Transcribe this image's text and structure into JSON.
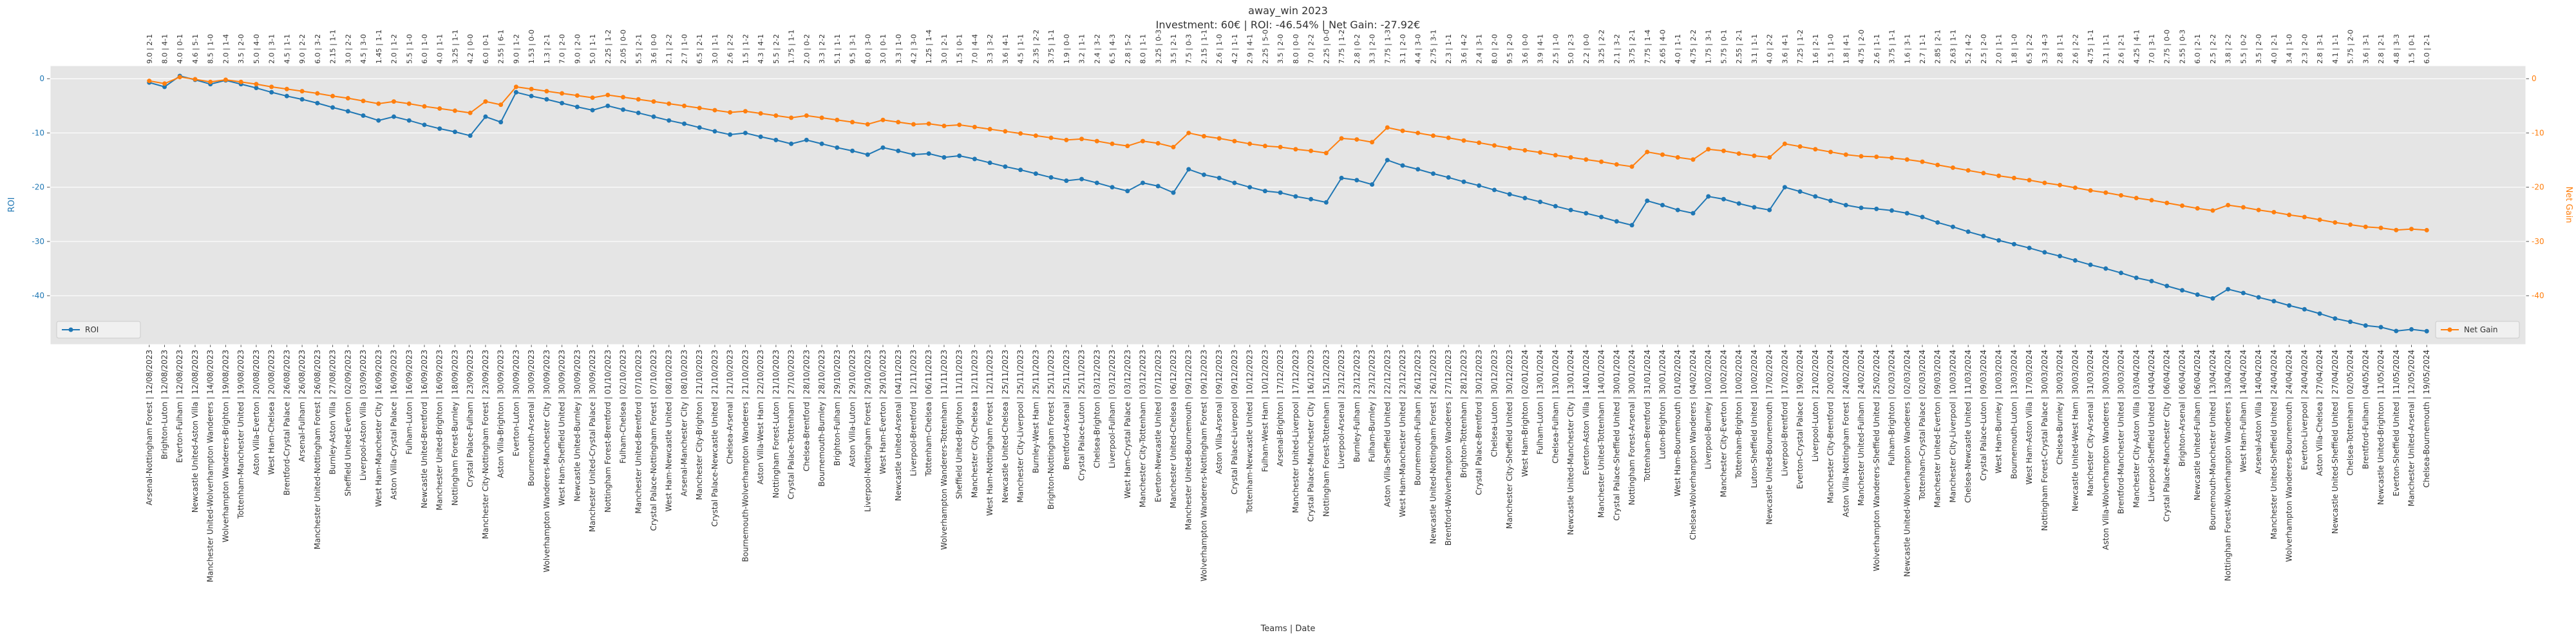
{
  "chart_data": {
    "type": "line",
    "title": "away_win 2023",
    "subtitle": "Investment: 60€ | ROI: -46.54% | Net Gain: -27.92€",
    "x_label": "Teams | Date",
    "y_label": "ROI",
    "y2_label": "Net Gain",
    "ylim": [
      -49,
      2.4
    ],
    "yticks": [
      0,
      -10,
      -20,
      -30,
      -40
    ],
    "y2lim": [
      -49,
      2.4
    ],
    "y2ticks": [
      0,
      -10,
      -20,
      -30,
      -40
    ],
    "grid": true,
    "categories": [
      "Arsenal-Nottingham Forest | 12/08/2023",
      "Brighton-Luton | 12/08/2023",
      "Everton-Fulham | 12/08/2023",
      "Newcastle United-Aston Villa | 12/08/2023",
      "Manchester United-Wolverhampton Wanderers | 14/08/2023",
      "Wolverhampton Wanderers-Brighton | 19/08/2023",
      "Tottenham-Manchester United | 19/08/2023",
      "Aston Villa-Everton | 20/08/2023",
      "West Ham-Chelsea | 20/08/2023",
      "Brentford-Crystal Palace | 26/08/2023",
      "Arsenal-Fulham | 26/08/2023",
      "Manchester United-Nottingham Forest | 26/08/2023",
      "Burnley-Aston Villa | 27/08/2023",
      "Sheffield United-Everton | 02/09/2023",
      "Liverpool-Aston Villa | 03/09/2023",
      "West Ham-Manchester City | 16/09/2023",
      "Aston Villa-Crystal Palace | 16/09/2023",
      "Fulham-Luton | 16/09/2023",
      "Newcastle United-Brentford | 16/09/2023",
      "Manchester United-Brighton | 16/09/2023",
      "Nottingham Forest-Burnley | 18/09/2023",
      "Crystal Palace-Fulham | 23/09/2023",
      "Manchester City-Nottingham Forest | 23/09/2023",
      "Aston Villa-Brighton | 30/09/2023",
      "Everton-Luton | 30/09/2023",
      "Bournemouth-Arsenal | 30/09/2023",
      "Wolverhampton Wanderers-Manchester City | 30/09/2023",
      "West Ham-Sheffield United | 30/09/2023",
      "Newcastle United-Burnley | 30/09/2023",
      "Manchester United-Crystal Palace | 30/09/2023",
      "Nottingham Forest-Brentford | 01/10/2023",
      "Fulham-Chelsea | 02/10/2023",
      "Manchester United-Brentford | 07/10/2023",
      "Crystal Palace-Nottingham Forest | 07/10/2023",
      "West Ham-Newcastle United | 08/10/2023",
      "Arsenal-Manchester City | 08/10/2023",
      "Manchester City-Brighton | 21/10/2023",
      "Crystal Palace-Newcastle United | 21/10/2023",
      "Chelsea-Arsenal | 21/10/2023",
      "Bournemouth-Wolverhampton Wanderers | 21/10/2023",
      "Aston Villa-West Ham | 22/10/2023",
      "Nottingham Forest-Luton | 21/10/2023",
      "Crystal Palace-Tottenham | 27/10/2023",
      "Chelsea-Brentford | 28/10/2023",
      "Bournemouth-Burnley | 28/10/2023",
      "Brighton-Fulham | 29/10/2023",
      "Aston Villa-Luton | 29/10/2023",
      "Liverpool-Nottingham Forest | 29/10/2023",
      "West Ham-Everton | 29/10/2023",
      "Newcastle United-Arsenal | 04/11/2023",
      "Liverpool-Brentford | 12/11/2023",
      "Tottenham-Chelsea | 06/11/2023",
      "Wolverhampton Wanderers-Tottenham | 11/11/2023",
      "Sheffield United-Brighton | 11/11/2023",
      "Manchester City-Chelsea | 12/11/2023",
      "West Ham-Nottingham Forest | 12/11/2023",
      "Newcastle United-Chelsea | 25/11/2023",
      "Manchester City-Liverpool | 25/11/2023",
      "Burnley-West Ham | 25/11/2023",
      "Brighton-Nottingham Forest | 25/11/2023",
      "Brentford-Arsenal | 25/11/2023",
      "Crystal Palace-Luton | 25/11/2023",
      "Chelsea-Brighton | 03/12/2023",
      "Liverpool-Fulham | 03/12/2023",
      "West Ham-Crystal Palace | 03/12/2023",
      "Manchester City-Tottenham | 03/12/2023",
      "Everton-Newcastle United | 07/12/2023",
      "Manchester United-Chelsea | 06/12/2023",
      "Manchester United-Bournemouth | 09/12/2023",
      "Wolverhampton Wanderers-Nottingham Forest | 09/12/2023",
      "Aston Villa-Arsenal | 09/12/2023",
      "Crystal Palace-Liverpool | 09/12/2023",
      "Tottenham-Newcastle United | 10/12/2023",
      "Fulham-West Ham | 10/12/2023",
      "Arsenal-Brighton | 17/12/2023",
      "Manchester United-Liverpool | 17/12/2023",
      "Crystal Palace-Manchester City | 16/12/2023",
      "Nottingham Forest-Tottenham | 15/12/2023",
      "Liverpool-Arsenal | 23/12/2023",
      "Burnley-Fulham | 23/12/2023",
      "Fulham-Burnley | 23/12/2023",
      "Aston Villa-Sheffield United | 22/12/2023",
      "West Ham-Manchester United | 23/12/2023",
      "Bournemouth-Fulham | 26/12/2023",
      "Newcastle United-Nottingham Forest | 26/12/2023",
      "Brentford-Wolverhampton Wanderers | 27/12/2023",
      "Brighton-Tottenham | 28/12/2023",
      "Crystal Palace-Brentford | 30/12/2023",
      "Chelsea-Luton | 30/12/2023",
      "Manchester City-Sheffield United | 30/12/2023",
      "West Ham-Brighton | 02/01/2024",
      "Fulham-Luton | 13/01/2024",
      "Chelsea-Fulham | 13/01/2024",
      "Newcastle United-Manchester City | 13/01/2024",
      "Everton-Aston Villa | 14/01/2024",
      "Manchester United-Tottenham | 14/01/2024",
      "Crystal Palace-Sheffield United | 30/01/2024",
      "Nottingham Forest-Arsenal | 30/01/2024",
      "Tottenham-Brentford | 31/01/2024",
      "Luton-Brighton | 30/01/2024",
      "West Ham-Bournemouth | 01/02/2024",
      "Chelsea-Wolverhampton Wanderers | 04/02/2024",
      "Liverpool-Burnley | 10/02/2024",
      "Manchester City-Everton | 10/02/2024",
      "Tottenham-Brighton | 10/02/2024",
      "Luton-Sheffield United | 10/02/2024",
      "Newcastle United-Bournemouth | 17/02/2024",
      "Liverpool-Brentford | 17/02/2024",
      "Everton-Crystal Palace | 19/02/2024",
      "Liverpool-Luton | 21/02/2024",
      "Manchester City-Brentford | 20/02/2024",
      "Aston Villa-Nottingham Forest | 24/02/2024",
      "Manchester United-Fulham | 24/02/2024",
      "Wolverhampton Wanderers-Sheffield United | 25/02/2024",
      "Fulham-Brighton | 02/03/2024",
      "Newcastle United-Wolverhampton Wanderers | 02/03/2024",
      "Tottenham-Crystal Palace | 02/03/2024",
      "Manchester United-Everton | 09/03/2024",
      "Manchester City-Liverpool | 10/03/2024",
      "Chelsea-Newcastle United | 11/03/2024",
      "Crystal Palace-Luton | 09/03/2024",
      "West Ham-Burnley | 10/03/2024",
      "Bournemouth-Luton | 13/03/2024",
      "West Ham-Aston Villa | 17/03/2024",
      "Nottingham Forest-Crystal Palace | 30/03/2024",
      "Chelsea-Burnley | 30/03/2024",
      "Newcastle United-West Ham | 30/03/2024",
      "Manchester City-Arsenal | 31/03/2024",
      "Aston Villa-Wolverhampton Wanderers | 30/03/2024",
      "Brentford-Manchester United | 30/03/2024",
      "Manchester City-Aston Villa | 03/04/2024",
      "Liverpool-Sheffield United | 04/04/2024",
      "Crystal Palace-Manchester City | 06/04/2024",
      "Brighton-Arsenal | 06/04/2024",
      "Newcastle United-Fulham | 06/04/2024",
      "Bournemouth-Manchester United | 13/04/2024",
      "Nottingham Forest-Wolverhampton Wanderers | 13/04/2024",
      "West Ham-Fulham | 14/04/2024",
      "Arsenal-Aston Villa | 14/04/2024",
      "Manchester United-Sheffield United | 24/04/2024",
      "Wolverhampton Wanderers-Bournemouth | 24/04/2024",
      "Everton-Liverpool | 24/04/2024",
      "Aston Villa-Chelsea | 27/04/2024",
      "Newcastle United-Sheffield United | 27/04/2024",
      "Chelsea-Tottenham | 02/05/2024",
      "Brentford-Fulham | 04/05/2024",
      "Newcastle United-Brighton | 11/05/2024",
      "Everton-Sheffield United | 11/05/2024",
      "Manchester United-Arsenal | 12/05/2024",
      "Chelsea-Bournemouth | 19/05/2024"
    ],
    "annotations": [
      "9.0 | 2-1",
      "8.0 | 4-1",
      "4.0 | 0-1",
      "4.6 | 5-1",
      "8.5 | 1-0",
      "2.0 | 1-4",
      "3.5 | 2-0",
      "5.0 | 4-0",
      "2.0 | 3-1",
      "4.5 | 1-1",
      "9.0 | 2-2",
      "6.0 | 3-2",
      "2.15 | 1-1",
      "3.0 | 2-2",
      "4.5 | 3-0",
      "1.45 | 1-1",
      "2.0 | 1-2",
      "5.5 | 1-0",
      "6.0 | 1-0",
      "4.0 | 1-1",
      "3.25 | 1-1",
      "4.2 | 0-0",
      "6.0 | 0-1",
      "2.55 | 6-1",
      "9.0 | 1-2",
      "1.53 | 0-0",
      "1.3 | 2-1",
      "7.0 | 2-0",
      "9.0 | 2-0",
      "5.0 | 1-1",
      "2.25 | 1-2",
      "2.05 | 0-0",
      "5.5 | 2-1",
      "3.6 | 0-0",
      "2.1 | 2-2",
      "2.7 | 1-0",
      "6.5 | 2-1",
      "3.0 | 1-1",
      "2.6 | 2-2",
      "1.5 | 1-2",
      "4.3 | 4-1",
      "5.5 | 2-2",
      "1.75 | 1-1",
      "2.0 | 0-2",
      "3.3 | 2-2",
      "5.1 | 1-1",
      "9.5 | 3-1",
      "8.0 | 3-0",
      "3.0 | 0-1",
      "3.3 | 1-0",
      "4.2 | 3-0",
      "1.25 | 1-4",
      "3.0 | 2-1",
      "1.5 | 0-1",
      "7.0 | 4-4",
      "3.3 | 3-2",
      "3.6 | 4-1",
      "4.5 | 1-1",
      "2.35 | 2-2",
      "3.75 | 1-1",
      "1.9 | 0-0",
      "3.2 | 1-1",
      "2.4 | 3-2",
      "6.5 | 4-3",
      "2.8 | 5-2",
      "8.0 | 1-1",
      "3.25 | 0-3",
      "3.5 | 2-1",
      "7.5 | 0-3",
      "2.15 | 1-1",
      "2.6 | 1-0",
      "4.2 | 1-1",
      "2.9 | 4-1",
      "2.25 | 5-0",
      "3.5 | 2-0",
      "8.0 | 0-0",
      "7.0 | 2-2",
      "2.25 | 0-0",
      "7.75 | 1-2",
      "2.8 | 0-2",
      "3.3 | 2-0",
      "7.75 | 1-3",
      "3.1 | 2-0",
      "4.4 | 3-0",
      "2.75 | 3-1",
      "2.3 | 1-1",
      "3.6 | 4-2",
      "2.4 | 3-1",
      "8.0 | 2-0",
      "9.5 | 2-0",
      "3.6 | 0-0",
      "3.9 | 4-1",
      "2.5 | 1-0",
      "5.0 | 2-3",
      "2.2 | 0-0",
      "3.25 | 2-2",
      "2.1 | 3-2",
      "3.75 | 2-1",
      "7.75 | 1-4",
      "2.65 | 4-0",
      "4.0 | 1-1",
      "4.75 | 2-2",
      "1.75 | 3-1",
      "5.75 | 0-1",
      "2.55 | 2-1",
      "3.1 | 1-1",
      "4.0 | 2-2",
      "3.6 | 4-1",
      "7.25 | 1-2",
      "1.6 | 2-1",
      "1.5 | 1-0",
      "1.8 | 4-1",
      "4.75 | 2-0",
      "2.6 | 1-1",
      "3.75 | 1-1",
      "1.6 | 3-1",
      "2.7 | 1-1",
      "2.85 | 2-1",
      "2.63 | 1-1",
      "5.2 | 4-2",
      "2.5 | 2-0",
      "2.0 | 1-1",
      "1.8 | 1-0",
      "6.5 | 2-2",
      "3.3 | 4-3",
      "2.8 | 1-1",
      "2.6 | 2-2",
      "4.75 | 1-1",
      "2.1 | 1-1",
      "2.6 | 2-1",
      "4.25 | 4-1",
      "7.0 | 3-1",
      "2.75 | 0-0",
      "2.55 | 0-3",
      "6.0 | 2-1",
      "2.5 | 2-2",
      "3.8 | 2-2",
      "5.5 | 0-2",
      "3.5 | 2-0",
      "4.0 | 2-1",
      "3.4 | 1-0",
      "2.3 | 2-0",
      "2.8 | 3-1",
      "4.1 | 1-1",
      "5.75 | 2-0",
      "3.6 | 3-1",
      "2.8 | 2-1",
      "4.8 | 3-3",
      "1.5 | 0-1",
      "6.0 | 2-1"
    ],
    "series": [
      {
        "name": "ROI",
        "color": "#1f77b4",
        "values": [
          -0.7,
          -1.5,
          0.5,
          -0.2,
          -1.0,
          -0.3,
          -1.0,
          -1.7,
          -2.5,
          -3.2,
          -3.8,
          -4.5,
          -5.3,
          -6.0,
          -6.8,
          -7.7,
          -7.0,
          -7.7,
          -8.5,
          -9.2,
          -9.8,
          -10.5,
          -7.0,
          -8.0,
          -2.5,
          -3.2,
          -3.8,
          -4.5,
          -5.2,
          -5.8,
          -5.0,
          -5.7,
          -6.3,
          -7.0,
          -7.7,
          -8.3,
          -9.0,
          -9.7,
          -10.3,
          -10.0,
          -10.7,
          -11.3,
          -12.0,
          -11.3,
          -12.0,
          -12.7,
          -13.3,
          -14.0,
          -12.7,
          -13.3,
          -14.0,
          -13.8,
          -14.5,
          -14.2,
          -14.8,
          -15.5,
          -16.2,
          -16.8,
          -17.5,
          -18.2,
          -18.8,
          -18.5,
          -19.2,
          -20.0,
          -20.7,
          -19.2,
          -19.8,
          -21.0,
          -16.7,
          -17.7,
          -18.3,
          -19.2,
          -20.0,
          -20.7,
          -21.0,
          -21.7,
          -22.2,
          -22.8,
          -18.3,
          -18.7,
          -19.5,
          -15.0,
          -16.0,
          -16.7,
          -17.5,
          -18.2,
          -19.0,
          -19.7,
          -20.5,
          -21.3,
          -22.0,
          -22.7,
          -23.5,
          -24.2,
          -24.8,
          -25.5,
          -26.3,
          -27.0,
          -22.5,
          -23.3,
          -24.2,
          -24.8,
          -21.7,
          -22.2,
          -23.0,
          -23.7,
          -24.2,
          -20.0,
          -20.8,
          -21.7,
          -22.5,
          -23.3,
          -23.8,
          -24.0,
          -24.3,
          -24.8,
          -25.5,
          -26.5,
          -27.3,
          -28.2,
          -29.0,
          -29.8,
          -30.5,
          -31.2,
          -32.0,
          -32.7,
          -33.5,
          -34.3,
          -35.0,
          -35.8,
          -36.7,
          -37.3,
          -38.2,
          -39.0,
          -39.8,
          -40.5,
          -38.8,
          -39.5,
          -40.3,
          -41.0,
          -41.8,
          -42.5,
          -43.3,
          -44.2,
          -44.8,
          -45.5,
          -45.8,
          -46.5,
          -46.2,
          -46.54
        ]
      },
      {
        "name": "Net Gain",
        "color": "#ff7f0e",
        "axis": "y2",
        "values": [
          -0.4,
          -0.9,
          0.3,
          -0.1,
          -0.6,
          -0.2,
          -0.6,
          -1.0,
          -1.5,
          -1.9,
          -2.3,
          -2.7,
          -3.2,
          -3.6,
          -4.1,
          -4.6,
          -4.2,
          -4.6,
          -5.1,
          -5.5,
          -5.9,
          -6.3,
          -4.2,
          -4.8,
          -1.5,
          -1.9,
          -2.3,
          -2.7,
          -3.1,
          -3.5,
          -3.0,
          -3.4,
          -3.8,
          -4.2,
          -4.6,
          -5.0,
          -5.4,
          -5.8,
          -6.2,
          -6.0,
          -6.4,
          -6.8,
          -7.2,
          -6.8,
          -7.2,
          -7.6,
          -8.0,
          -8.4,
          -7.6,
          -8.0,
          -8.4,
          -8.3,
          -8.7,
          -8.5,
          -8.9,
          -9.3,
          -9.7,
          -10.1,
          -10.5,
          -10.9,
          -11.3,
          -11.1,
          -11.5,
          -12.0,
          -12.4,
          -11.5,
          -11.9,
          -12.6,
          -10.0,
          -10.6,
          -11.0,
          -11.5,
          -12.0,
          -12.4,
          -12.6,
          -13.0,
          -13.3,
          -13.7,
          -11.0,
          -11.2,
          -11.7,
          -9.0,
          -9.6,
          -10.0,
          -10.5,
          -10.9,
          -11.4,
          -11.8,
          -12.3,
          -12.8,
          -13.2,
          -13.6,
          -14.1,
          -14.5,
          -14.9,
          -15.3,
          -15.8,
          -16.2,
          -13.5,
          -14.0,
          -14.5,
          -14.9,
          -13.0,
          -13.3,
          -13.8,
          -14.2,
          -14.5,
          -12.0,
          -12.5,
          -13.0,
          -13.5,
          -14.0,
          -14.3,
          -14.4,
          -14.6,
          -14.9,
          -15.3,
          -15.9,
          -16.4,
          -16.9,
          -17.4,
          -17.9,
          -18.3,
          -18.7,
          -19.2,
          -19.6,
          -20.1,
          -20.6,
          -21.0,
          -21.5,
          -22.0,
          -22.4,
          -22.9,
          -23.4,
          -23.9,
          -24.3,
          -23.3,
          -23.7,
          -24.2,
          -24.6,
          -25.1,
          -25.5,
          -26.0,
          -26.5,
          -26.9,
          -27.3,
          -27.5,
          -27.9,
          -27.7,
          -27.92
        ]
      }
    ]
  }
}
